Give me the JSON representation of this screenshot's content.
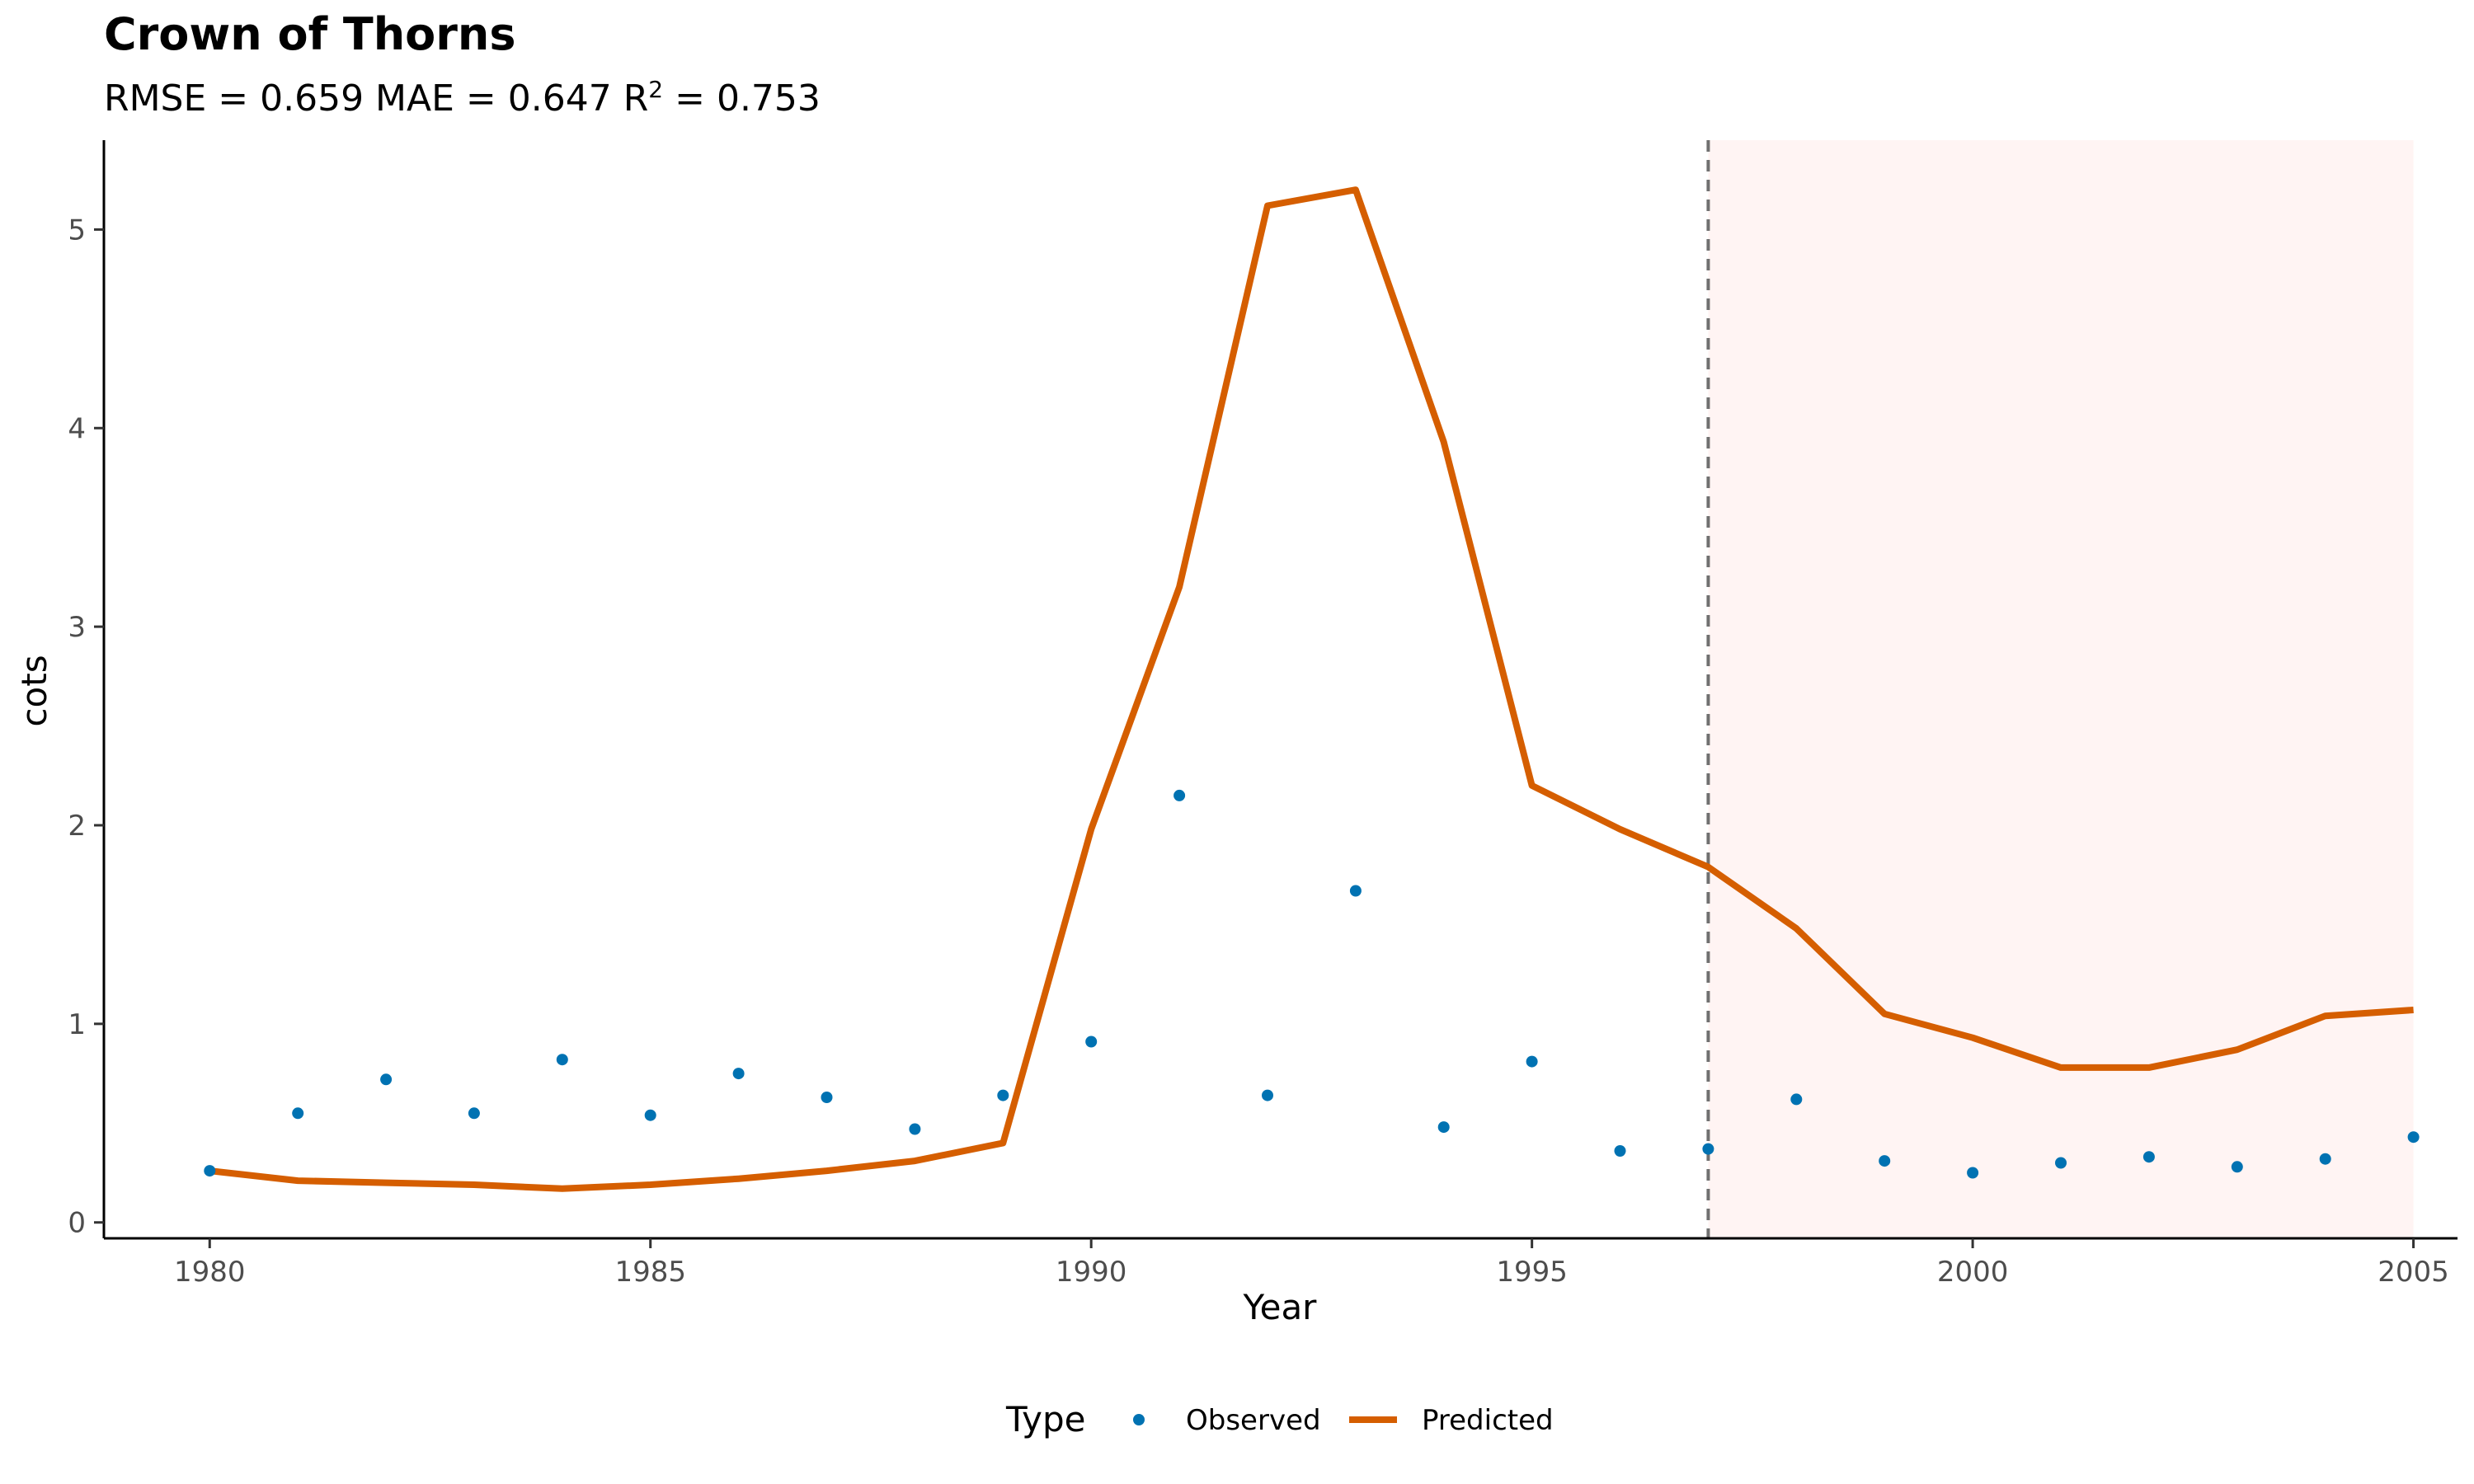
{
  "chart_data": {
    "type": "line",
    "title": "Crown of Thorns",
    "subtitle": {
      "prefix": "RMSE = 0.659 MAE = 0.647 R",
      "superscript": "2",
      "suffix": " = 0.753"
    },
    "xlabel": "Year",
    "ylabel": "cots",
    "xlim": [
      1978.8,
      2005.5
    ],
    "ylim": [
      -0.08,
      5.45
    ],
    "x_ticks": [
      1980,
      1985,
      1990,
      1995,
      2000,
      2005
    ],
    "y_ticks": [
      0,
      1,
      2,
      3,
      4,
      5
    ],
    "grid": false,
    "forecast_start": 1997,
    "forecast_region": [
      1997,
      2005
    ],
    "colors": {
      "observed": "#0072B2",
      "predicted": "#D55E00",
      "forecast_band": "#FFF4F3",
      "vline": "#707070",
      "axis": "#000000"
    },
    "legend": {
      "title": "Type",
      "position": "bottom",
      "entries": [
        {
          "key": "observed",
          "label": "Observed",
          "marker": "point"
        },
        {
          "key": "predicted",
          "label": "Predicted",
          "marker": "line"
        }
      ]
    },
    "series": [
      {
        "name": "Observed",
        "style": "point",
        "x": [
          1980,
          1981,
          1982,
          1983,
          1984,
          1985,
          1986,
          1987,
          1988,
          1989,
          1990,
          1991,
          1992,
          1993,
          1994,
          1995,
          1996,
          1997,
          1998,
          1999,
          2000,
          2001,
          2002,
          2003,
          2004,
          2005
        ],
        "y": [
          0.26,
          0.55,
          0.72,
          0.55,
          0.82,
          0.54,
          0.75,
          0.63,
          0.47,
          0.64,
          0.91,
          2.15,
          0.64,
          1.67,
          0.48,
          0.81,
          0.36,
          0.37,
          0.62,
          0.31,
          0.25,
          0.3,
          0.33,
          0.28,
          0.32,
          0.43
        ]
      },
      {
        "name": "Predicted",
        "style": "line",
        "x": [
          1980,
          1981,
          1982,
          1983,
          1984,
          1985,
          1986,
          1987,
          1988,
          1989,
          1990,
          1991,
          1992,
          1993,
          1994,
          1995,
          1996,
          1997,
          1998,
          1999,
          2000,
          2001,
          2002,
          2003,
          2004,
          2005
        ],
        "y": [
          0.26,
          0.21,
          0.2,
          0.19,
          0.17,
          0.19,
          0.22,
          0.26,
          0.31,
          0.4,
          1.98,
          3.2,
          5.12,
          5.2,
          3.93,
          2.2,
          1.98,
          1.79,
          1.48,
          1.05,
          0.93,
          0.78,
          0.78,
          0.87,
          1.04,
          1.07
        ]
      }
    ]
  }
}
